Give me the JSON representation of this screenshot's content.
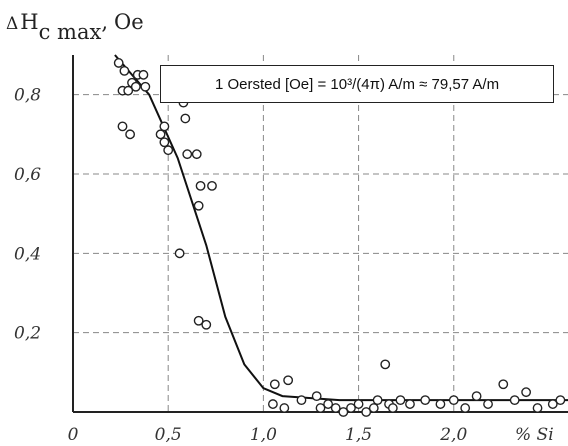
{
  "chart_data": {
    "type": "scatter",
    "ylabel_delta": "Δ",
    "ylabel_main": "H",
    "ylabel_sub": "c max",
    "ylabel_unit": "Oe",
    "xlabel": "% Si",
    "annotation": "1 Oersted [Oe] = 10³/(4π) A/m ≈ 79,57 A/m",
    "x_ticks": [
      "0",
      "0,5",
      "1,0",
      "1,5",
      "2,0"
    ],
    "y_ticks": [
      "0,2",
      "0,4",
      "0,6",
      "0,8"
    ],
    "xlim": [
      0,
      2.6
    ],
    "ylim": [
      0,
      0.9
    ],
    "grid": true,
    "points": [
      [
        0.24,
        0.88
      ],
      [
        0.27,
        0.86
      ],
      [
        0.26,
        0.81
      ],
      [
        0.29,
        0.81
      ],
      [
        0.31,
        0.83
      ],
      [
        0.33,
        0.82
      ],
      [
        0.34,
        0.85
      ],
      [
        0.37,
        0.85
      ],
      [
        0.38,
        0.82
      ],
      [
        0.26,
        0.72
      ],
      [
        0.3,
        0.7
      ],
      [
        0.46,
        0.7
      ],
      [
        0.48,
        0.72
      ],
      [
        0.48,
        0.68
      ],
      [
        0.5,
        0.66
      ],
      [
        0.58,
        0.78
      ],
      [
        0.59,
        0.74
      ],
      [
        0.6,
        0.65
      ],
      [
        0.65,
        0.65
      ],
      [
        0.67,
        0.57
      ],
      [
        0.66,
        0.52
      ],
      [
        0.73,
        0.57
      ],
      [
        0.56,
        0.4
      ],
      [
        0.66,
        0.23
      ],
      [
        0.7,
        0.22
      ],
      [
        1.06,
        0.07
      ],
      [
        1.13,
        0.08
      ],
      [
        1.05,
        0.02
      ],
      [
        1.11,
        0.01
      ],
      [
        1.2,
        0.03
      ],
      [
        1.28,
        0.04
      ],
      [
        1.3,
        0.01
      ],
      [
        1.34,
        0.02
      ],
      [
        1.38,
        0.01
      ],
      [
        1.42,
        0.0
      ],
      [
        1.46,
        0.01
      ],
      [
        1.5,
        0.02
      ],
      [
        1.54,
        0.0
      ],
      [
        1.58,
        0.01
      ],
      [
        1.6,
        0.03
      ],
      [
        1.64,
        0.12
      ],
      [
        1.66,
        0.02
      ],
      [
        1.68,
        0.01
      ],
      [
        1.72,
        0.03
      ],
      [
        1.77,
        0.02
      ],
      [
        1.85,
        0.03
      ],
      [
        1.93,
        0.02
      ],
      [
        2.0,
        0.03
      ],
      [
        2.06,
        0.01
      ],
      [
        2.12,
        0.04
      ],
      [
        2.18,
        0.02
      ],
      [
        2.26,
        0.07
      ],
      [
        2.32,
        0.03
      ],
      [
        2.38,
        0.05
      ],
      [
        2.44,
        0.01
      ],
      [
        2.52,
        0.02
      ],
      [
        2.56,
        0.03
      ]
    ],
    "trend": [
      [
        0.22,
        0.9
      ],
      [
        0.4,
        0.8
      ],
      [
        0.55,
        0.64
      ],
      [
        0.7,
        0.42
      ],
      [
        0.8,
        0.24
      ],
      [
        0.9,
        0.12
      ],
      [
        1.0,
        0.06
      ],
      [
        1.1,
        0.04
      ],
      [
        1.4,
        0.03
      ],
      [
        2.0,
        0.03
      ],
      [
        2.6,
        0.03
      ]
    ]
  }
}
